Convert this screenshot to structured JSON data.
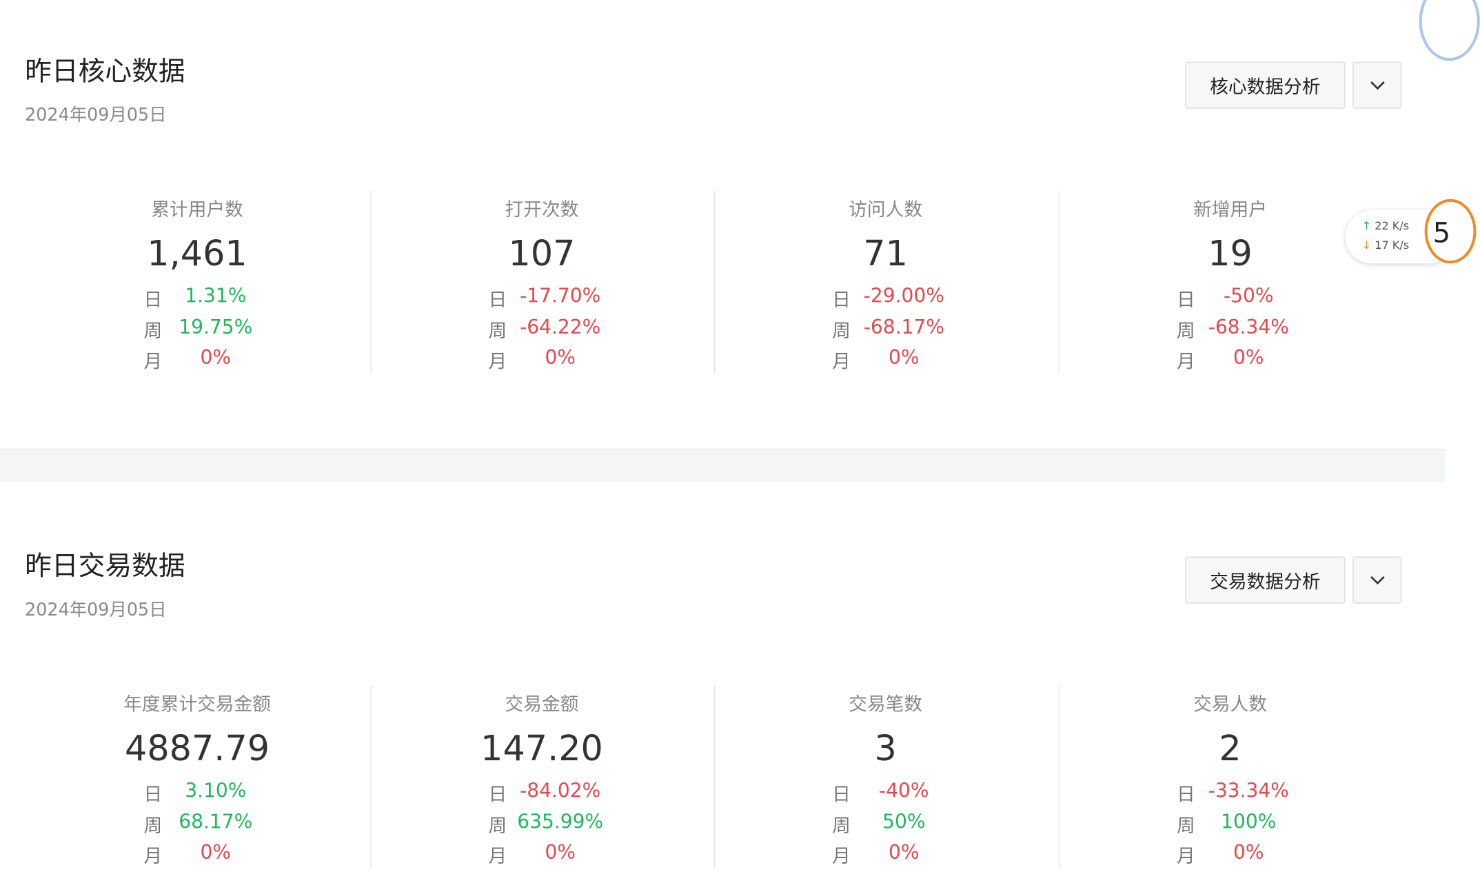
{
  "sections": [
    {
      "title": "昨日核心数据",
      "date": "2024年09月05日",
      "button": "核心数据分析",
      "cards": [
        {
          "label": "累计用户数",
          "value": "1,461",
          "rows": [
            {
              "period": "日",
              "change": "1.31%"
            },
            {
              "period": "周",
              "change": "19.75%"
            },
            {
              "period": "月",
              "change": "0%"
            }
          ]
        },
        {
          "label": "打开次数",
          "value": "107",
          "rows": [
            {
              "period": "日",
              "change": "-17.70%"
            },
            {
              "period": "周",
              "change": "-64.22%"
            },
            {
              "period": "月",
              "change": "0%"
            }
          ]
        },
        {
          "label": "访问人数",
          "value": "71",
          "rows": [
            {
              "period": "日",
              "change": "-29.00%"
            },
            {
              "period": "周",
              "change": "-68.17%"
            },
            {
              "period": "月",
              "change": "0%"
            }
          ]
        },
        {
          "label": "新增用户",
          "value": "19",
          "rows": [
            {
              "period": "日",
              "change": "-50%"
            },
            {
              "period": "周",
              "change": "-68.34%"
            },
            {
              "period": "月",
              "change": "0%"
            }
          ]
        }
      ]
    },
    {
      "title": "昨日交易数据",
      "date": "2024年09月05日",
      "button": "交易数据分析",
      "cards": [
        {
          "label": "年度累计交易金额",
          "value": "4887.79",
          "rows": [
            {
              "period": "日",
              "change": "3.10%"
            },
            {
              "period": "周",
              "change": "68.17%"
            },
            {
              "period": "月",
              "change": "0%"
            }
          ]
        },
        {
          "label": "交易金额",
          "value": "147.20",
          "rows": [
            {
              "period": "日",
              "change": "-84.02%"
            },
            {
              "period": "周",
              "change": "635.99%"
            },
            {
              "period": "月",
              "change": "0%"
            }
          ]
        },
        {
          "label": "交易笔数",
          "value": "3",
          "rows": [
            {
              "period": "日",
              "change": "-40%"
            },
            {
              "period": "周",
              "change": "50%"
            },
            {
              "period": "月",
              "change": "0%"
            }
          ]
        },
        {
          "label": "交易人数",
          "value": "2",
          "rows": [
            {
              "period": "日",
              "change": "-33.34%"
            },
            {
              "period": "周",
              "change": "100%"
            },
            {
              "period": "月",
              "change": "0%"
            }
          ]
        }
      ]
    }
  ],
  "speed_widget": {
    "up": "22 K/s",
    "down": "17 K/s",
    "badge": "5"
  }
}
